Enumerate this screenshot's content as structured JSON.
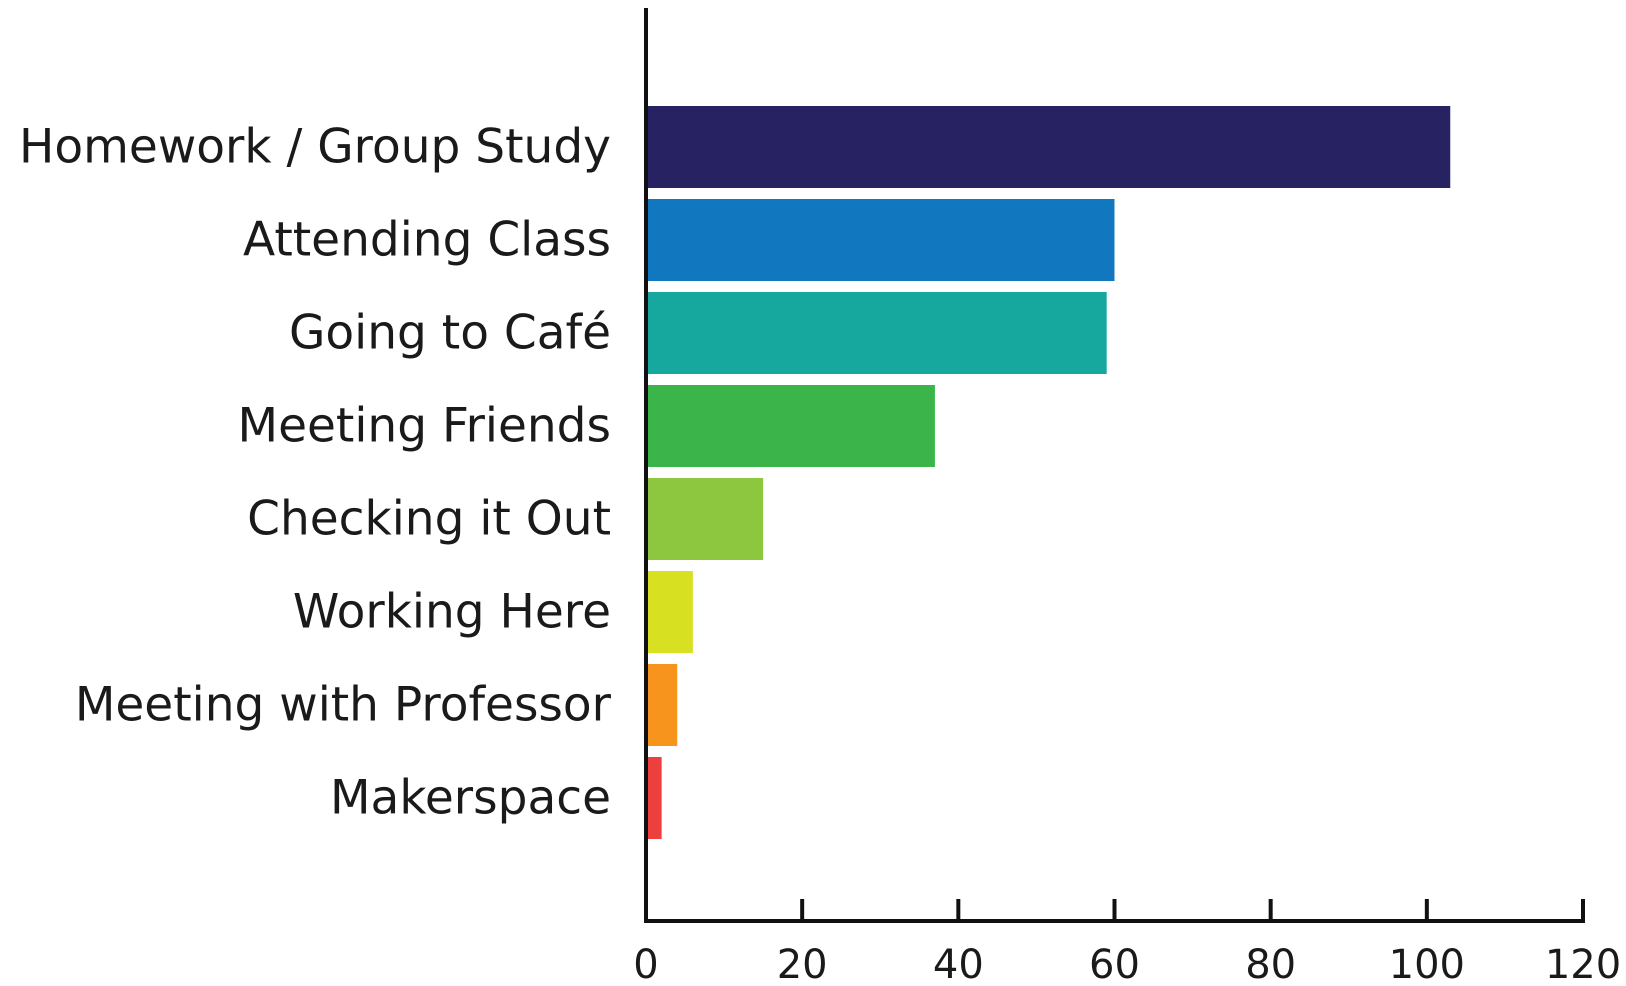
{
  "chart_data": {
    "type": "bar",
    "orientation": "horizontal",
    "categories": [
      "Homework / Group Study",
      "Attending Class",
      "Going to Café",
      "Meeting Friends",
      "Checking it Out",
      "Working Here",
      "Meeting with Professor",
      "Makerspace"
    ],
    "values": [
      103,
      60,
      59,
      37,
      15,
      6,
      4,
      2
    ],
    "colors": [
      "#272262",
      "#1177be",
      "#16a89e",
      "#3bb54a",
      "#8dc63f",
      "#d7e021",
      "#f7941e",
      "#ee3f3f"
    ],
    "xlim": [
      0,
      120
    ],
    "xticks": [
      "0",
      "20",
      "40",
      "60",
      "80",
      "100",
      "120"
    ],
    "grid": false,
    "legend": "none",
    "title": "",
    "xlabel": "",
    "ylabel": ""
  }
}
